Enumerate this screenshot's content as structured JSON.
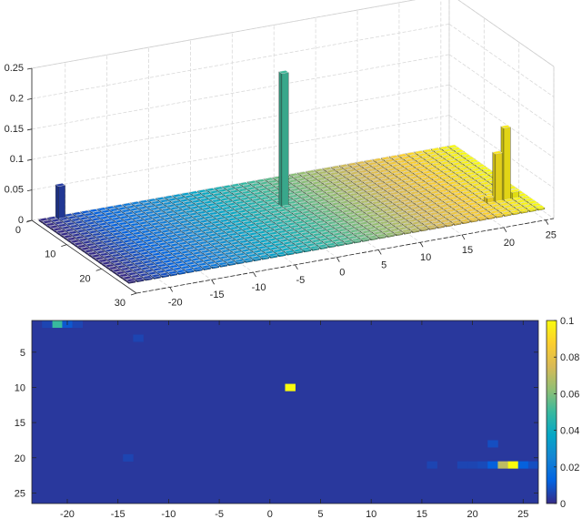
{
  "chart_data": [
    {
      "type": "bar3d",
      "x_range": [
        -24,
        26
      ],
      "y_range": [
        0,
        30
      ],
      "zlim": [
        0,
        0.25
      ],
      "x_ticks": [
        -20,
        -15,
        -10,
        -5,
        0,
        5,
        10,
        15,
        20,
        25
      ],
      "y_ticks": [
        0,
        10,
        20,
        30
      ],
      "z_ticks": [
        "0",
        "0.05",
        "0.1",
        "0.15",
        "0.2",
        "0.25"
      ],
      "z_tick_values": [
        0,
        0.05,
        0.1,
        0.15,
        0.2,
        0.25
      ],
      "grid": true,
      "colormap": "parula",
      "color_by": "column",
      "floor_value": 0.003,
      "rows": 26,
      "columns": [
        -23,
        26
      ],
      "bars": [
        {
          "x": -21,
          "y": 1,
          "value": 0.055
        },
        {
          "x": 2,
          "y": 10,
          "value": 0.22
        },
        {
          "x": 23,
          "y": 21,
          "value": 0.08
        },
        {
          "x": 24,
          "y": 21,
          "value": 0.12
        },
        {
          "x": 25,
          "y": 21,
          "value": 0.012
        },
        {
          "x": 22,
          "y": 21,
          "value": 0.01
        }
      ]
    },
    {
      "type": "heatmap",
      "x_range": [
        -23.5,
        26.5
      ],
      "y_range": [
        0.5,
        26.5
      ],
      "x_ticks": [
        -20,
        -15,
        -10,
        -5,
        0,
        5,
        10,
        15,
        20,
        25
      ],
      "y_ticks": [
        5,
        10,
        15,
        20,
        25
      ],
      "colormap": "parula",
      "clim": [
        0,
        0.1
      ],
      "colorbar_ticks": [
        "0",
        "0.02",
        "0.04",
        "0.06",
        "0.08",
        "0.1"
      ],
      "colorbar_tick_values": [
        0,
        0.02,
        0.04,
        0.06,
        0.08,
        0.1
      ],
      "background_value": 0.003,
      "cells": [
        {
          "x": -21,
          "row": 1,
          "value": 0.05
        },
        {
          "x": -22,
          "row": 1,
          "value": 0.006
        },
        {
          "x": -20,
          "row": 1,
          "value": 0.01
        },
        {
          "x": -19,
          "row": 1,
          "value": 0.006
        },
        {
          "x": -13,
          "row": 3,
          "value": 0.006
        },
        {
          "x": 2,
          "row": 10,
          "value": 0.1
        },
        {
          "x": 16,
          "row": 21,
          "value": 0.006
        },
        {
          "x": 19,
          "row": 21,
          "value": 0.006
        },
        {
          "x": 20,
          "row": 21,
          "value": 0.006
        },
        {
          "x": 21,
          "row": 21,
          "value": 0.007
        },
        {
          "x": 22,
          "row": 21,
          "value": 0.012
        },
        {
          "x": 23,
          "row": 21,
          "value": 0.07
        },
        {
          "x": 24,
          "row": 21,
          "value": 0.1
        },
        {
          "x": 25,
          "row": 21,
          "value": 0.012
        },
        {
          "x": 26,
          "row": 21,
          "value": 0.008
        },
        {
          "x": 22,
          "row": 18,
          "value": 0.008
        },
        {
          "x": -14,
          "row": 20,
          "value": 0.006
        }
      ]
    }
  ]
}
